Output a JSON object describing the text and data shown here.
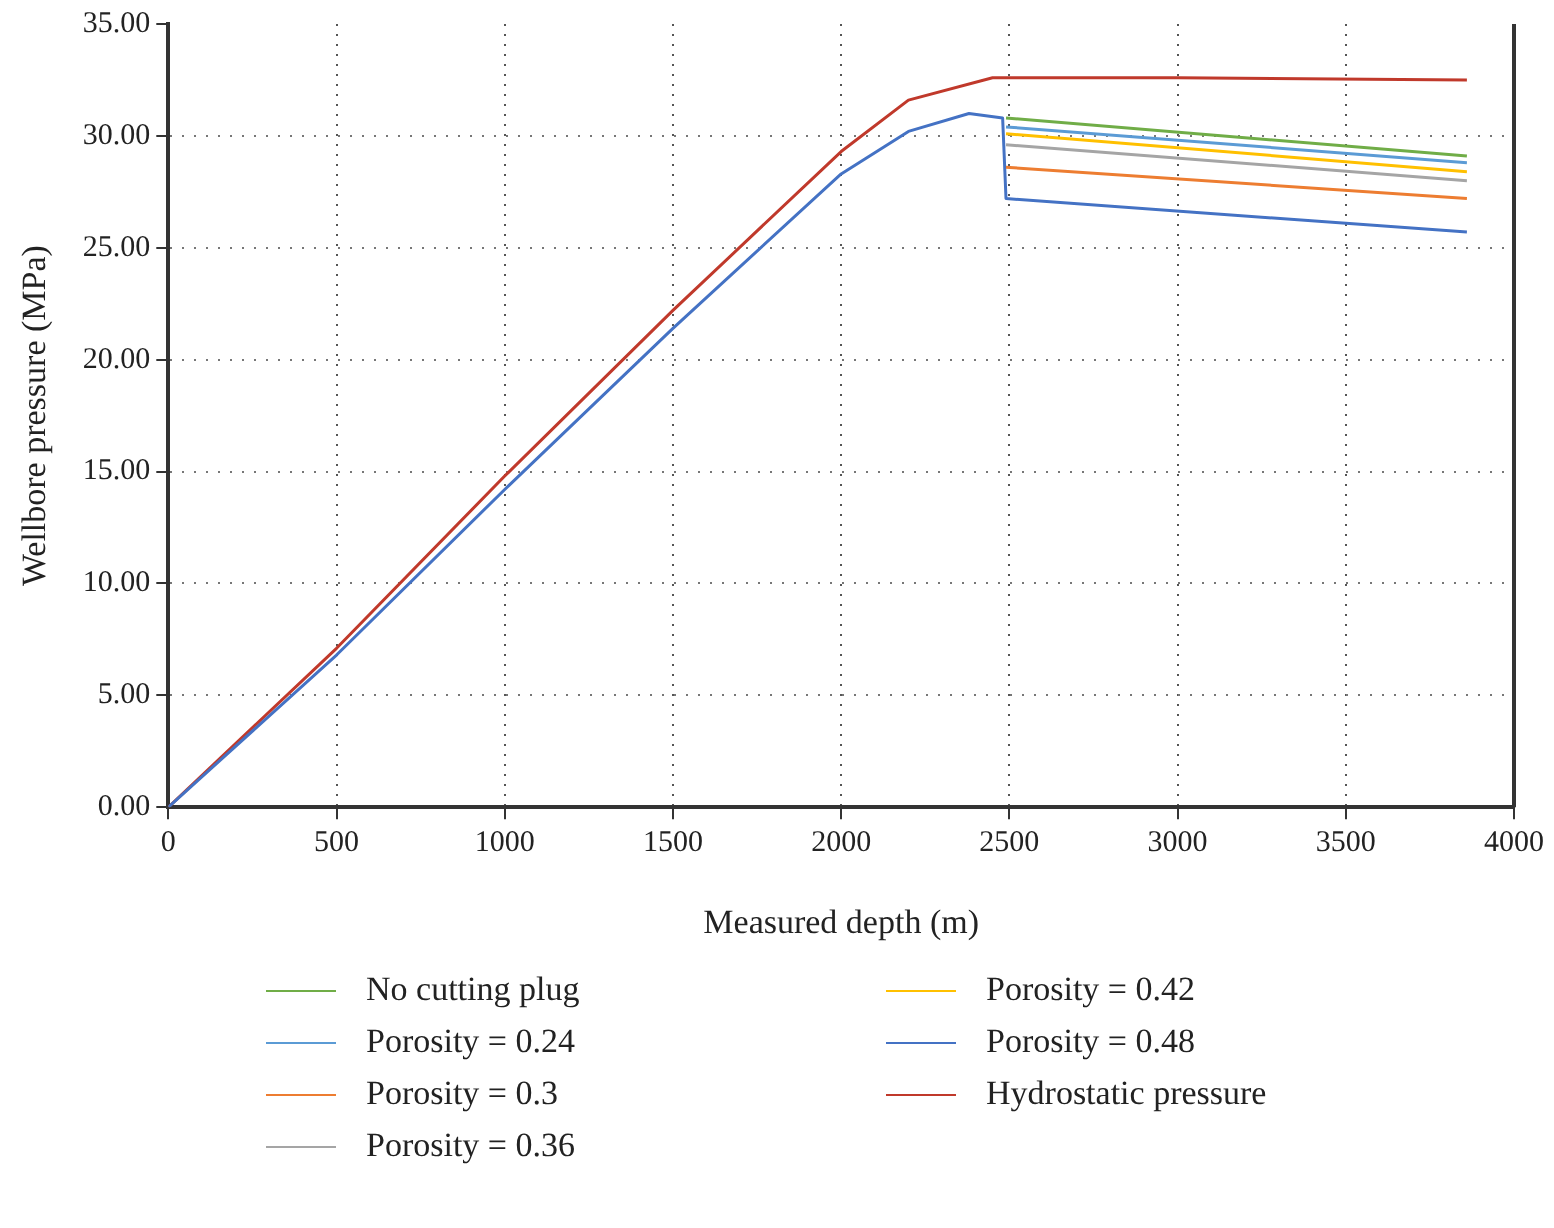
{
  "chart_data": {
    "type": "line",
    "xlabel": "Measured depth (m)",
    "ylabel": "Wellbore pressure (MPa)",
    "xlim": [
      0,
      4000
    ],
    "xticks": [
      0,
      500,
      1000,
      1500,
      2000,
      2500,
      3000,
      3500,
      4000
    ],
    "ylim": [
      0,
      35
    ],
    "yticks": [
      {
        "value": 0,
        "label": "0.00"
      },
      {
        "value": 5,
        "label": "5.00"
      },
      {
        "value": 10,
        "label": "10.00"
      },
      {
        "value": 15,
        "label": "15.00"
      },
      {
        "value": 20,
        "label": "20.00"
      },
      {
        "value": 25,
        "label": "25.00"
      },
      {
        "value": 30,
        "label": "30.00"
      },
      {
        "value": 35,
        "label": "35.00"
      }
    ],
    "grid": true,
    "legend": "bottom",
    "marker": "none",
    "line_style": "solid",
    "series": [
      {
        "name": "No cutting plug",
        "color": "#70ad47",
        "x": [
          2490,
          3860
        ],
        "values": [
          30.8,
          29.1
        ]
      },
      {
        "name": "Porosity = 0.24",
        "color": "#5b9bd5",
        "x": [
          2490,
          3860
        ],
        "values": [
          30.4,
          28.8
        ]
      },
      {
        "name": "Porosity = 0.3",
        "color": "#ed7d31",
        "x": [
          2490,
          3860
        ],
        "values": [
          28.6,
          27.2
        ]
      },
      {
        "name": "Porosity = 0.36",
        "color": "#a5a5a5",
        "x": [
          2490,
          3860
        ],
        "values": [
          29.6,
          28.0
        ]
      },
      {
        "name": "Porosity = 0.42",
        "color": "#ffc000",
        "x": [
          2490,
          3860
        ],
        "values": [
          30.1,
          28.4
        ]
      },
      {
        "name": "Porosity = 0.48",
        "color": "#4472c4",
        "x": [
          0,
          500,
          1000,
          1500,
          2000,
          2200,
          2380,
          2480,
          2490,
          3860
        ],
        "values": [
          0,
          6.8,
          14.2,
          21.4,
          28.3,
          30.2,
          31.0,
          30.8,
          27.2,
          25.7
        ]
      },
      {
        "name": "Hydrostatic pressure",
        "color": "#c0392b",
        "x": [
          0,
          500,
          1000,
          1500,
          2000,
          2200,
          2450,
          3000,
          3860
        ],
        "values": [
          0,
          7.1,
          14.8,
          22.2,
          29.3,
          31.6,
          32.6,
          32.6,
          32.5
        ]
      }
    ]
  }
}
